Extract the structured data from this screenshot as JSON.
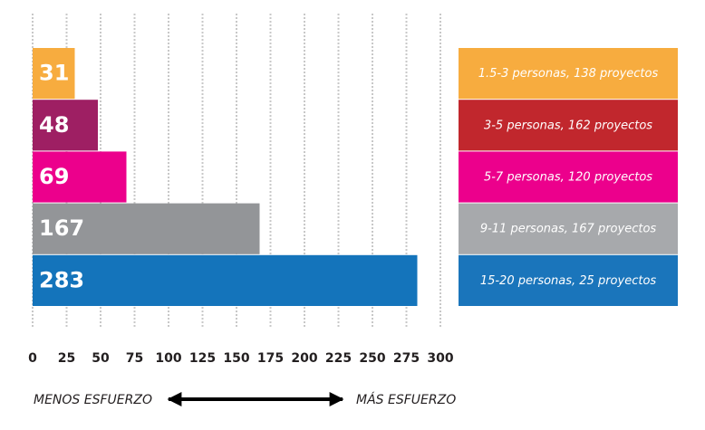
{
  "chart_data": {
    "type": "bar",
    "orientation": "horizontal",
    "categories": [
      "1.5-3 personas, 138 proyectos",
      "3-5 personas, 162 proyectos",
      "5-7 personas, 120 proyectos",
      "9-11 personas, 167 proyectos",
      "15-20 personas, 25 proyectos"
    ],
    "values": [
      31,
      48,
      69,
      167,
      283
    ],
    "colors": [
      "#f7ac3f",
      "#9e1f63",
      "#ec008c",
      "#939598",
      "#1474bb"
    ],
    "legend_colors": [
      "#f7ac3f",
      "#c1272d",
      "#ec008c",
      "#a7a9ac",
      "#1a75bb"
    ],
    "xlim": [
      0,
      300
    ],
    "xticks": [
      0,
      25,
      50,
      75,
      100,
      125,
      150,
      175,
      200,
      225,
      250,
      275,
      300
    ],
    "grid": true,
    "annotations": [
      "MENOS ESFUERZO",
      "MÁS ESFUERZO"
    ]
  }
}
